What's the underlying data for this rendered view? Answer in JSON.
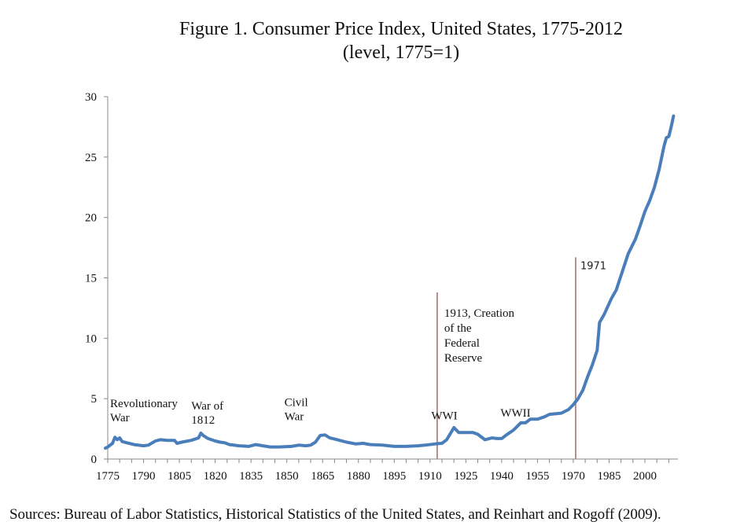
{
  "chart_data": {
    "type": "line",
    "title": "Figure 1. Consumer Price Index, United States, 1775-2012",
    "subtitle": "(level, 1775=1)",
    "xlabel": "",
    "ylabel": "",
    "xlim": [
      1775,
      2012
    ],
    "ylim": [
      0,
      30
    ],
    "y_ticks": [
      0,
      5,
      10,
      15,
      20,
      25,
      30
    ],
    "x_tick_labels": [
      1775,
      1790,
      1805,
      1820,
      1835,
      1850,
      1865,
      1880,
      1895,
      1910,
      1925,
      1940,
      1955,
      1970,
      1985,
      2000
    ],
    "x_minor_tick_step": 5,
    "grid": false,
    "legend": "none",
    "series": [
      {
        "name": "CPI level (1775=1)",
        "color": "#4a7ebb",
        "x": [
          1774,
          1775,
          1777,
          1778,
          1779,
          1780,
          1781,
          1783,
          1786,
          1790,
          1792,
          1795,
          1797,
          1800,
          1803,
          1804,
          1806,
          1810,
          1813,
          1814,
          1815,
          1817,
          1820,
          1822,
          1824,
          1826,
          1830,
          1834,
          1837,
          1840,
          1843,
          1847,
          1852,
          1855,
          1858,
          1860,
          1862,
          1864,
          1866,
          1868,
          1870,
          1875,
          1879,
          1882,
          1885,
          1890,
          1895,
          1900,
          1905,
          1908,
          1912,
          1915,
          1917,
          1920,
          1922,
          1925,
          1928,
          1930,
          1933,
          1936,
          1938,
          1940,
          1942,
          1945,
          1948,
          1950,
          1952,
          1955,
          1958,
          1960,
          1965,
          1968,
          1970,
          1972,
          1974,
          1976,
          1978,
          1980,
          1981,
          1983,
          1986,
          1988,
          1991,
          1993,
          1996,
          1998,
          2000,
          2002,
          2004,
          2006,
          2008,
          2009,
          2010,
          2011,
          2012
        ],
        "values": [
          0.9,
          1.0,
          1.3,
          1.8,
          1.6,
          1.75,
          1.45,
          1.35,
          1.2,
          1.1,
          1.15,
          1.5,
          1.6,
          1.55,
          1.55,
          1.3,
          1.4,
          1.55,
          1.75,
          2.15,
          1.95,
          1.7,
          1.5,
          1.4,
          1.35,
          1.2,
          1.1,
          1.05,
          1.2,
          1.1,
          1.0,
          1.0,
          1.05,
          1.15,
          1.1,
          1.15,
          1.4,
          1.95,
          2.0,
          1.75,
          1.65,
          1.4,
          1.25,
          1.3,
          1.2,
          1.15,
          1.05,
          1.05,
          1.1,
          1.15,
          1.25,
          1.3,
          1.6,
          2.6,
          2.2,
          2.2,
          2.2,
          2.05,
          1.6,
          1.75,
          1.7,
          1.7,
          2.0,
          2.4,
          3.0,
          3.0,
          3.3,
          3.3,
          3.5,
          3.7,
          3.8,
          4.1,
          4.5,
          5.0,
          5.7,
          6.8,
          7.8,
          9.0,
          11.3,
          12.0,
          13.3,
          14.0,
          15.8,
          17.0,
          18.2,
          19.3,
          20.5,
          21.4,
          22.5,
          24.0,
          25.9,
          26.6,
          26.7,
          27.5,
          28.4
        ]
      }
    ],
    "reference_lines": [
      {
        "x": 1913,
        "color": "#b07070",
        "top_value": 13.8,
        "label": [
          "1913, Creation",
          "of the",
          "Federal",
          "Reserve"
        ]
      },
      {
        "x": 1971,
        "color": "#b07070",
        "top_value": 16.7,
        "label": [
          "1971"
        ]
      }
    ],
    "annotations": [
      {
        "lines": [
          "Revolutionary",
          "War"
        ],
        "x": 1776,
        "y": 4.3
      },
      {
        "lines": [
          "War of",
          "1812"
        ],
        "x": 1810,
        "y": 4.1
      },
      {
        "lines": [
          "Civil",
          "War"
        ],
        "x": 1849,
        "y": 4.4
      },
      {
        "lines": [
          "WWI"
        ],
        "x": 1910.5,
        "y": 3.3
      },
      {
        "lines": [
          "WWII"
        ],
        "x": 1939.5,
        "y": 3.5
      }
    ]
  },
  "source_note": "Sources: Bureau of Labor Statistics, Historical Statistics of the United States, and Reinhart and Rogoff (2009)."
}
